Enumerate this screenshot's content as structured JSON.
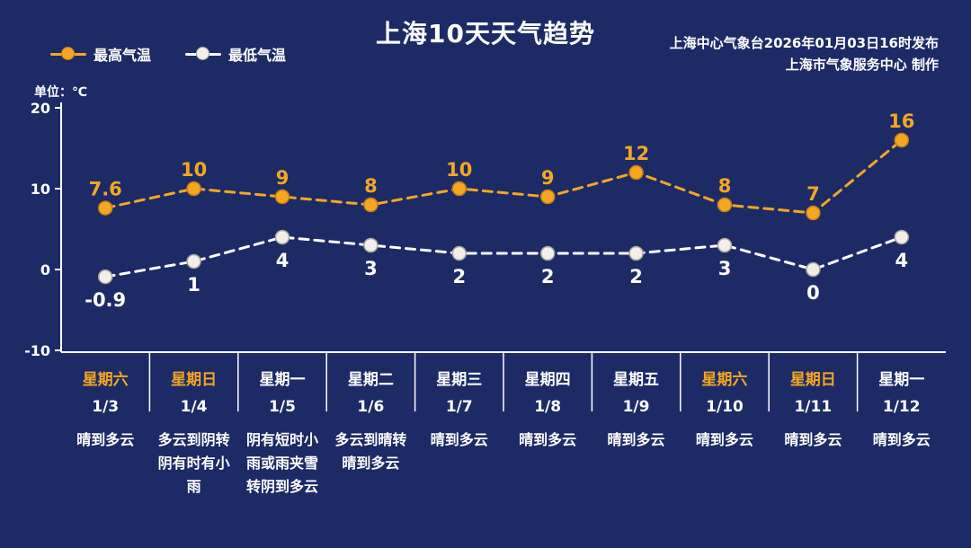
{
  "header": {
    "title": "上海10天天气趋势",
    "source_line1": "上海中心气象台2026年01月03日16时发布",
    "source_line2": "上海市气象服务中心  制作"
  },
  "legend": {
    "high_label": "最高气温",
    "low_label": "最低气温"
  },
  "axis": {
    "unit_label": "单位：℃"
  },
  "colors": {
    "background": "#1c2b66",
    "high": "#f5a623",
    "high_edge": "#c87d12",
    "low": "#f2efe9",
    "low_edge": "#a9a398",
    "text": "#ffffff",
    "weekend": "#f5a623"
  },
  "chart_data": {
    "type": "line",
    "title": "上海10天天气趋势",
    "unit": "单位：℃",
    "ylim": [
      -10,
      20
    ],
    "yticks": [
      20,
      10,
      0,
      -10
    ],
    "grid": false,
    "legend_position": "top-left",
    "categories": [
      "1/3",
      "1/4",
      "1/5",
      "1/6",
      "1/7",
      "1/8",
      "1/9",
      "1/10",
      "1/11",
      "1/12"
    ],
    "series": [
      {
        "name": "最高气温",
        "values": [
          7.6,
          10,
          9,
          8,
          10,
          9,
          12,
          8,
          7,
          16
        ]
      },
      {
        "name": "最低气温",
        "values": [
          -0.9,
          1,
          4,
          3,
          2,
          2,
          2,
          3,
          0,
          4
        ]
      }
    ],
    "days": [
      {
        "weekday": "星期六",
        "date": "1/3",
        "weather": "晴到多云",
        "weekend": true
      },
      {
        "weekday": "星期日",
        "date": "1/4",
        "weather": "多云到阴转阴有时有小雨",
        "weekend": true
      },
      {
        "weekday": "星期一",
        "date": "1/5",
        "weather": "阴有短时小雨或雨夹雪转阴到多云",
        "weekend": false
      },
      {
        "weekday": "星期二",
        "date": "1/6",
        "weather": "多云到晴转晴到多云",
        "weekend": false
      },
      {
        "weekday": "星期三",
        "date": "1/7",
        "weather": "晴到多云",
        "weekend": false
      },
      {
        "weekday": "星期四",
        "date": "1/8",
        "weather": "晴到多云",
        "weekend": false
      },
      {
        "weekday": "星期五",
        "date": "1/9",
        "weather": "晴到多云",
        "weekend": false
      },
      {
        "weekday": "星期六",
        "date": "1/10",
        "weather": "晴到多云",
        "weekend": true
      },
      {
        "weekday": "星期日",
        "date": "1/11",
        "weather": "晴到多云",
        "weekend": true
      },
      {
        "weekday": "星期一",
        "date": "1/12",
        "weather": "晴到多云",
        "weekend": false
      }
    ]
  }
}
